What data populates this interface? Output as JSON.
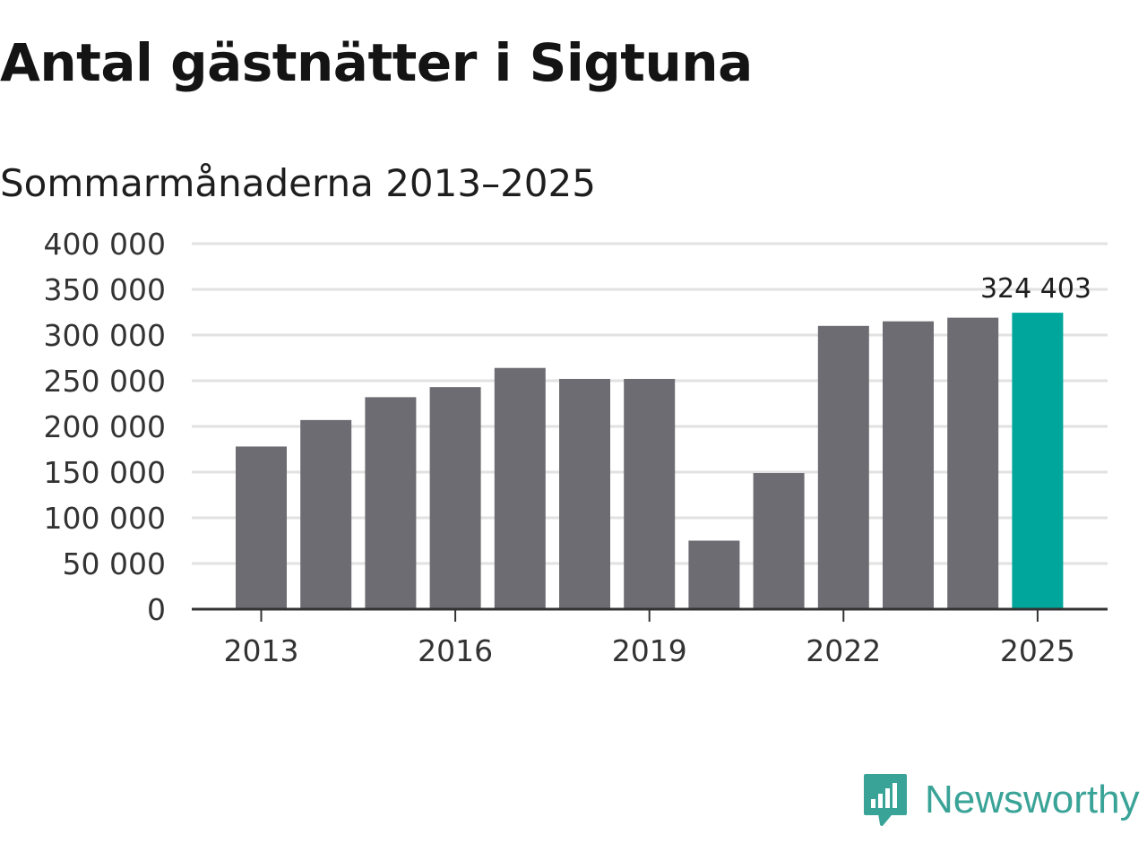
{
  "page": {
    "title": "Antal gästnätter i Sigtuna",
    "subtitle": "Sommarmånaderna 2013–2025",
    "brand": "Newsworthy"
  },
  "colors": {
    "bar": "#6d6c72",
    "highlight": "#00a69b",
    "grid": "#e2e2e2",
    "axis": "#333333",
    "text": "#333333",
    "brand": "#3aa397"
  },
  "chart_data": {
    "type": "bar",
    "title": "Antal gästnätter i Sigtuna",
    "subtitle": "Sommarmånaderna 2013–2025",
    "categories": [
      "2013",
      "2014",
      "2015",
      "2016",
      "2017",
      "2018",
      "2019",
      "2020",
      "2021",
      "2022",
      "2023",
      "2024",
      "2025"
    ],
    "values": [
      178000,
      207000,
      232000,
      243000,
      264000,
      252000,
      252000,
      75000,
      149000,
      310000,
      315000,
      319000,
      324403
    ],
    "highlight_index": 12,
    "data_labels": [
      {
        "index": 12,
        "text": "324 403"
      }
    ],
    "y_ticks": [
      0,
      50000,
      100000,
      150000,
      200000,
      250000,
      300000,
      350000,
      400000
    ],
    "y_tick_labels": [
      "0",
      "50 000",
      "100 000",
      "150 000",
      "200 000",
      "250 000",
      "300 000",
      "350 000",
      "400 000"
    ],
    "x_tick_labels": [
      "2013",
      "2016",
      "2019",
      "2022",
      "2025"
    ],
    "ylim": [
      0,
      400000
    ],
    "xlabel": "",
    "ylabel": "",
    "grid": "horizontal",
    "legend": "none"
  }
}
